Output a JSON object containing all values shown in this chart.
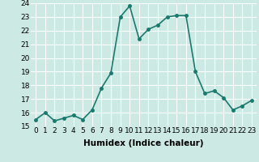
{
  "x": [
    0,
    1,
    2,
    3,
    4,
    5,
    6,
    7,
    8,
    9,
    10,
    11,
    12,
    13,
    14,
    15,
    16,
    17,
    18,
    19,
    20,
    21,
    22,
    23
  ],
  "y": [
    15.5,
    16.0,
    15.4,
    15.6,
    15.8,
    15.5,
    16.2,
    17.8,
    18.9,
    23.0,
    23.8,
    21.4,
    22.1,
    22.4,
    23.0,
    23.1,
    23.1,
    19.0,
    17.4,
    17.6,
    17.1,
    16.2,
    16.5,
    16.9
  ],
  "line_color": "#1a7a6e",
  "marker": "o",
  "marker_size": 2.5,
  "xlabel": "Humidex (Indice chaleur)",
  "xlim": [
    -0.5,
    23.5
  ],
  "ylim": [
    15,
    24
  ],
  "yticks": [
    15,
    16,
    17,
    18,
    19,
    20,
    21,
    22,
    23,
    24
  ],
  "xticks": [
    0,
    1,
    2,
    3,
    4,
    5,
    6,
    7,
    8,
    9,
    10,
    11,
    12,
    13,
    14,
    15,
    16,
    17,
    18,
    19,
    20,
    21,
    22,
    23
  ],
  "background_color": "#cce9e4",
  "grid_color": "#ffffff",
  "line_width": 1.2,
  "xlabel_fontsize": 7.5,
  "tick_fontsize": 6.5
}
